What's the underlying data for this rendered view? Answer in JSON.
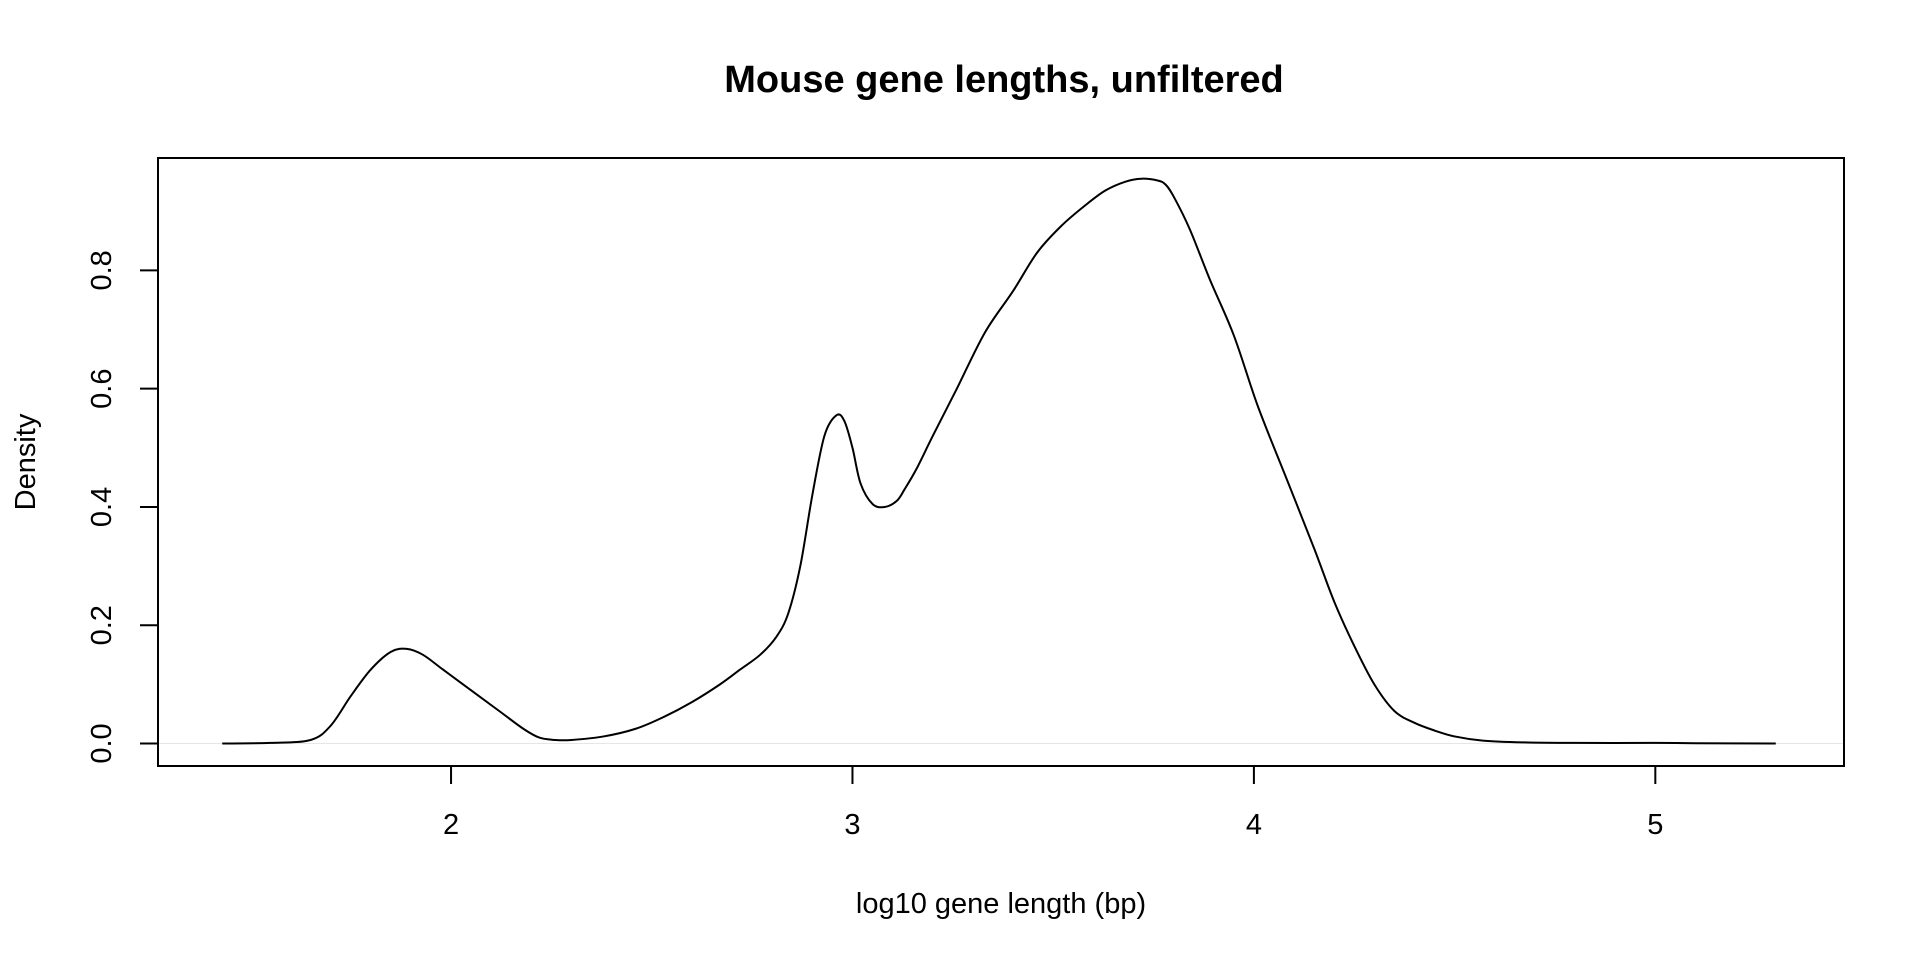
{
  "chart_data": {
    "type": "line",
    "title": "Mouse gene lengths, unfiltered",
    "xlabel": "log10 gene length (bp)",
    "ylabel": "Density",
    "xlim": [
      1.27,
      5.47
    ],
    "ylim": [
      -0.038,
      0.99
    ],
    "x_ticks": [
      {
        "value": 2,
        "label": "2"
      },
      {
        "value": 3,
        "label": "3"
      },
      {
        "value": 4,
        "label": "4"
      },
      {
        "value": 5,
        "label": "5"
      }
    ],
    "y_ticks": [
      {
        "value": 0.0,
        "label": "0.0"
      },
      {
        "value": 0.2,
        "label": "0.2"
      },
      {
        "value": 0.4,
        "label": "0.4"
      },
      {
        "value": 0.6,
        "label": "0.6"
      },
      {
        "value": 0.8,
        "label": "0.8"
      }
    ],
    "grid": false,
    "baseline": 0,
    "series": [
      {
        "color": "#000000",
        "x": [
          1.43,
          1.55,
          1.65,
          1.7,
          1.75,
          1.8,
          1.85,
          1.89,
          1.93,
          1.98,
          2.05,
          2.12,
          2.18,
          2.22,
          2.26,
          2.3,
          2.38,
          2.46,
          2.53,
          2.6,
          2.67,
          2.72,
          2.77,
          2.81,
          2.84,
          2.87,
          2.9,
          2.93,
          2.96,
          2.98,
          3.0,
          3.02,
          3.05,
          3.08,
          3.11,
          3.13,
          3.16,
          3.2,
          3.26,
          3.33,
          3.4,
          3.46,
          3.52,
          3.58,
          3.63,
          3.68,
          3.72,
          3.76,
          3.78,
          3.8,
          3.84,
          3.89,
          3.95,
          4.01,
          4.08,
          4.15,
          4.2,
          4.25,
          4.3,
          4.35,
          4.4,
          4.45,
          4.5,
          4.57,
          4.67,
          4.8,
          5.0,
          5.1,
          5.3
        ],
        "y": [
          0.0,
          0.001,
          0.006,
          0.03,
          0.08,
          0.125,
          0.155,
          0.16,
          0.15,
          0.125,
          0.09,
          0.055,
          0.025,
          0.01,
          0.006,
          0.006,
          0.012,
          0.025,
          0.045,
          0.07,
          0.1,
          0.125,
          0.15,
          0.18,
          0.22,
          0.3,
          0.42,
          0.52,
          0.555,
          0.545,
          0.5,
          0.44,
          0.405,
          0.4,
          0.41,
          0.43,
          0.465,
          0.52,
          0.6,
          0.695,
          0.765,
          0.83,
          0.875,
          0.91,
          0.935,
          0.95,
          0.955,
          0.952,
          0.945,
          0.925,
          0.87,
          0.785,
          0.69,
          0.57,
          0.45,
          0.33,
          0.24,
          0.165,
          0.1,
          0.055,
          0.035,
          0.022,
          0.012,
          0.005,
          0.002,
          0.001,
          0.001,
          0.0005,
          0.0
        ]
      }
    ]
  }
}
